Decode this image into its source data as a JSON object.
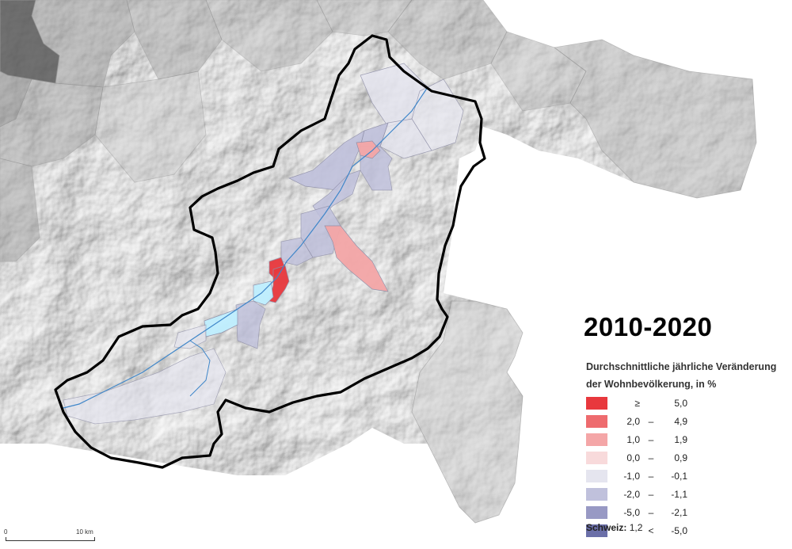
{
  "title": "2010-2020",
  "legend": {
    "title": "Durchschnittliche jährliche Veränderung der Wohnbevölkerung, in %",
    "classes": [
      {
        "lo": "≥",
        "sep": "",
        "hi": "5,0",
        "color": "#e8383d"
      },
      {
        "lo": "2,0",
        "sep": "–",
        "hi": "4,9",
        "color": "#ee6b6e"
      },
      {
        "lo": "1,0",
        "sep": "–",
        "hi": "1,9",
        "color": "#f4a6a7"
      },
      {
        "lo": "0,0",
        "sep": "–",
        "hi": "0,9",
        "color": "#f8dadb"
      },
      {
        "lo": "-1,0",
        "sep": "–",
        "hi": "-0,1",
        "color": "#e5e5ef"
      },
      {
        "lo": "-2,0",
        "sep": "–",
        "hi": "-1,1",
        "color": "#c0c1dc"
      },
      {
        "lo": "-5,0",
        "sep": "–",
        "hi": "-2,1",
        "color": "#9899c4"
      },
      {
        "lo": "",
        "sep": "<",
        "hi": "-5,0",
        "color": "#6b6fa8"
      }
    ]
  },
  "reference": {
    "label": "Schweiz:",
    "value": "1,2"
  },
  "scale": {
    "start": "0",
    "end": "10 km"
  }
}
